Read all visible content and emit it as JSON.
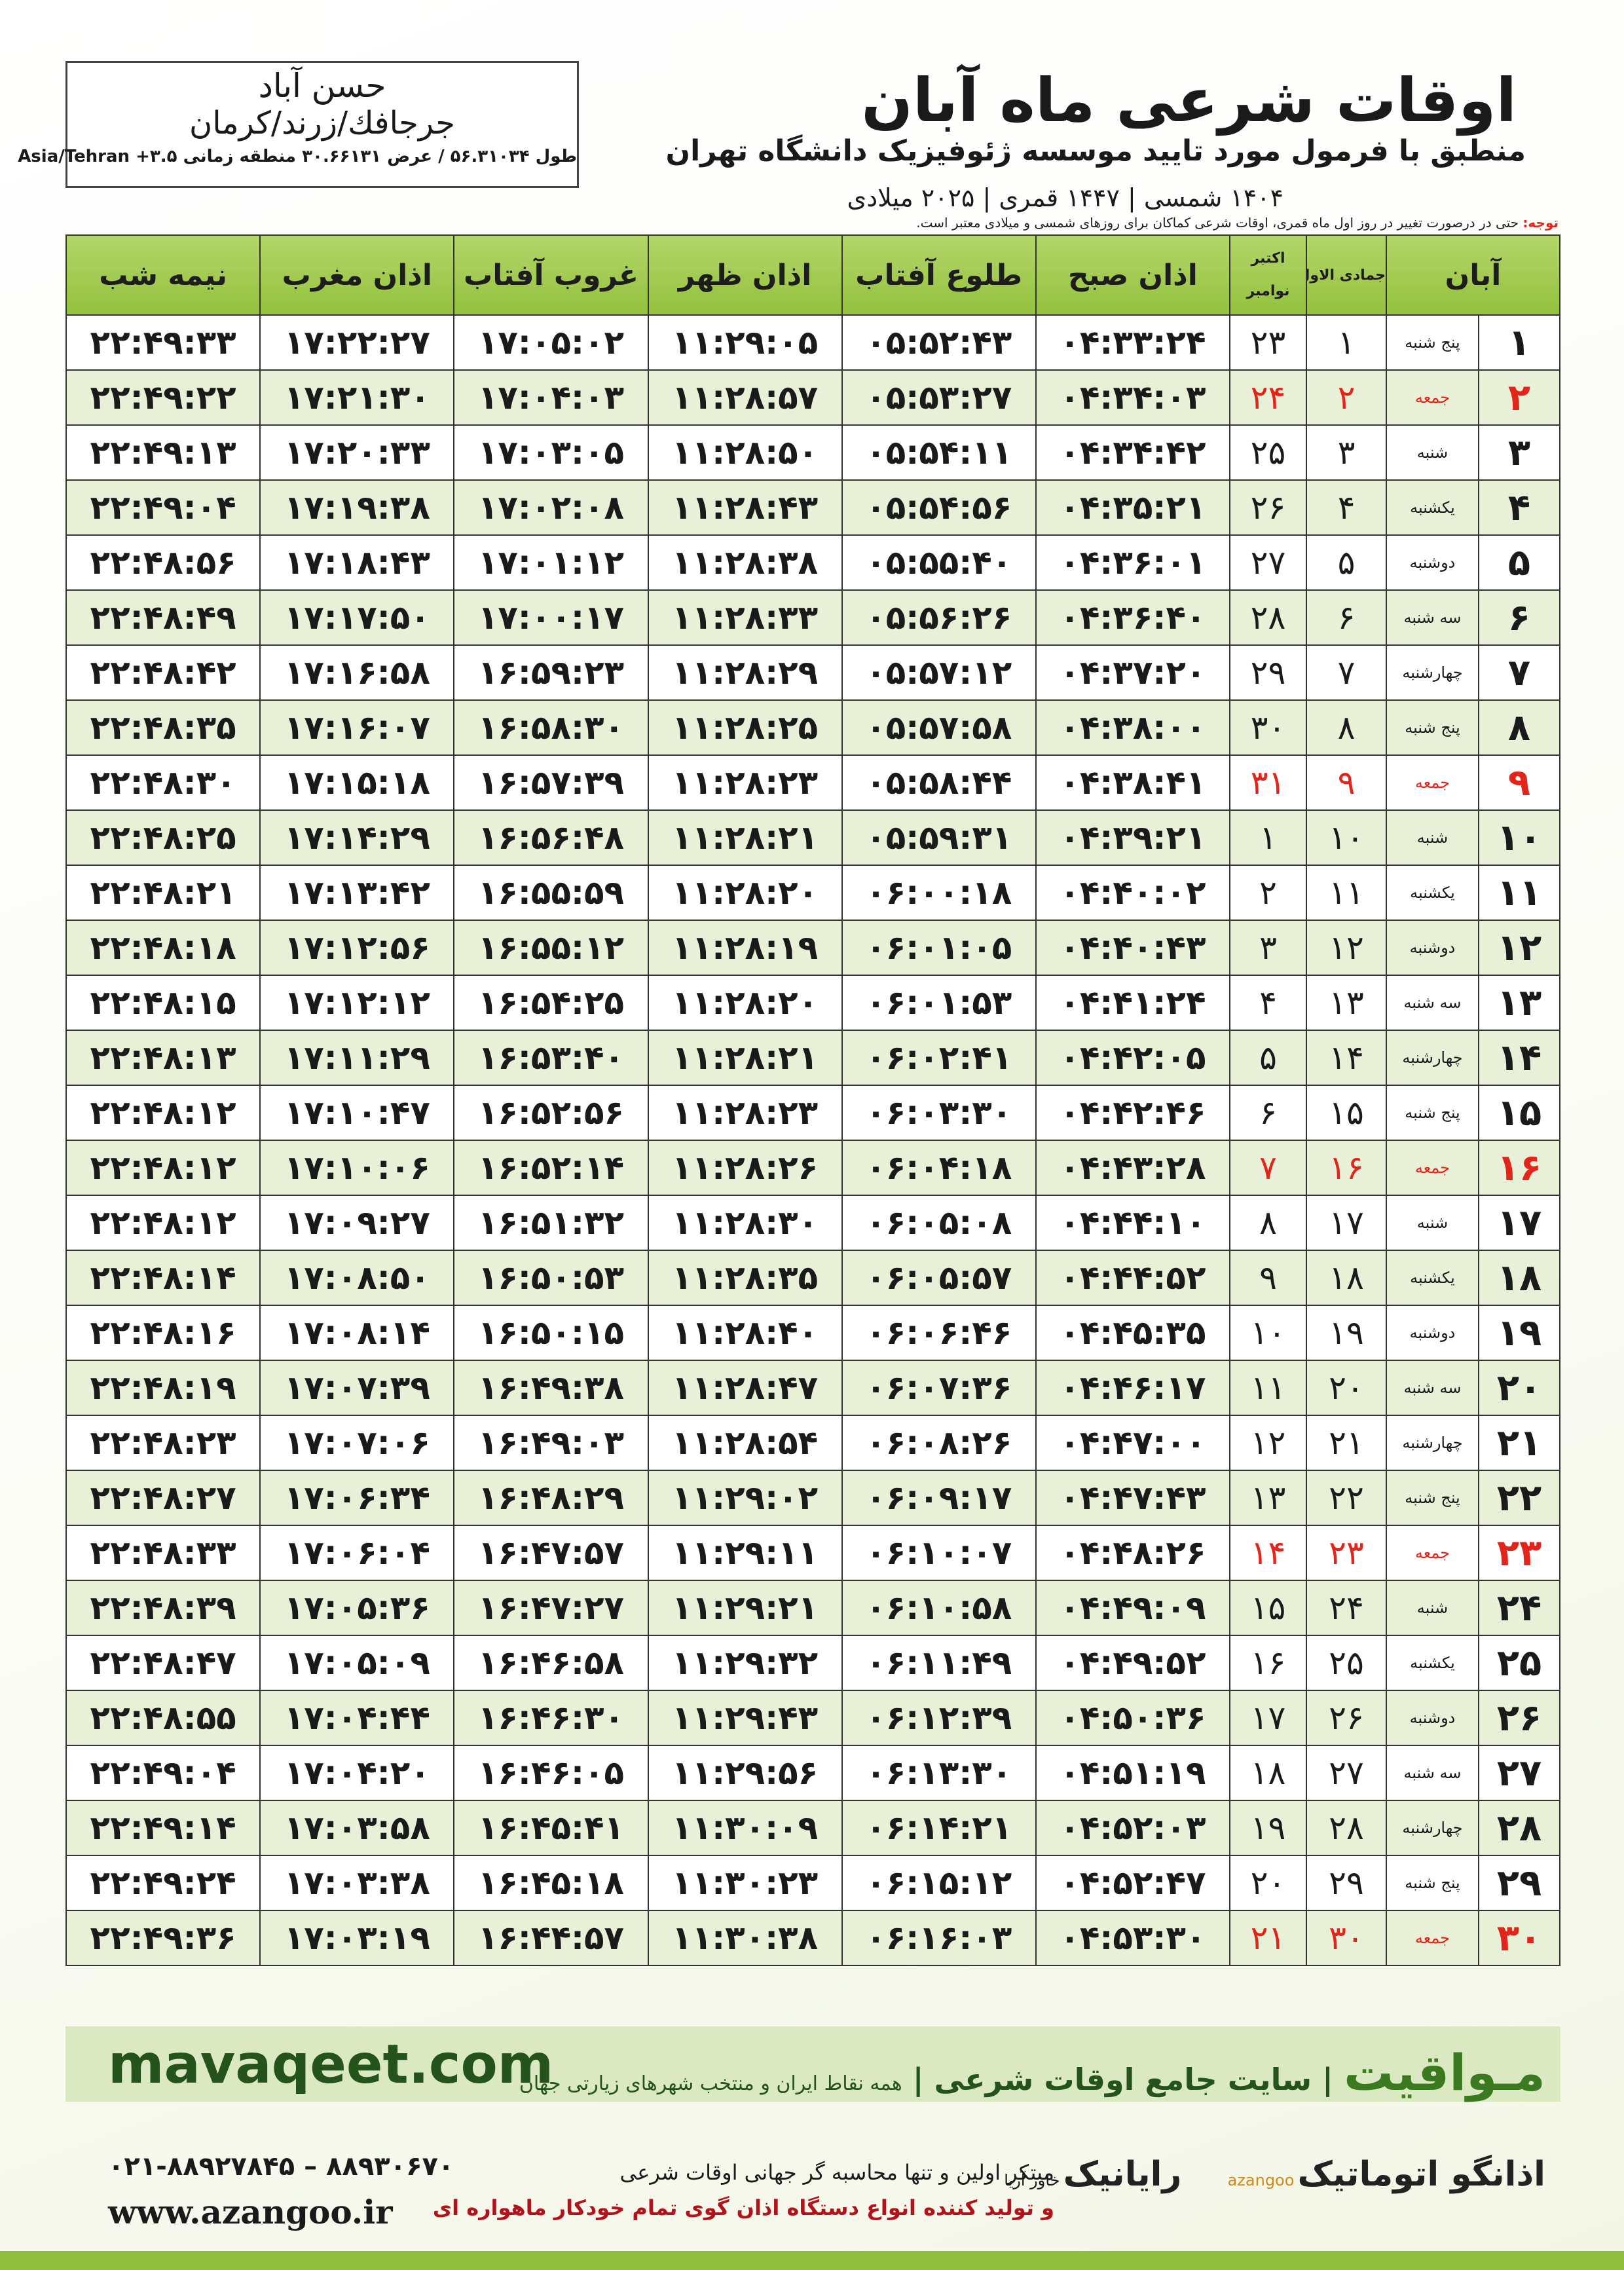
{
  "header": {
    "title": "اوقات شرعی ماه آبان",
    "subtitle": "منطبق با فرمول مورد تایید موسسه ژئوفیزیک دانشگاه تهران",
    "dates": "۱۴۰۴ شمسی | ۱۴۴۷ قمری | ۲۰۲۵ میلادی"
  },
  "location": {
    "city": "حسن آباد",
    "region": "جرجافك/زرند/کرمان",
    "coords": "طول ۵۶.۳۱۰۳۴ / عرض ۳۰.۶۶۱۳۱ منطقه زمانی ۳.۵+ Asia/Tehran"
  },
  "note": {
    "label": "توجه:",
    "text": "حتی در درصورت تغییر در روز اول ماه قمری، اوقات شرعی کماکان برای روزهای شمسی و میلادی معتبر است."
  },
  "table": {
    "columns": {
      "day": "آبان",
      "qamari": "جمادی الاول",
      "miladi": [
        "اکتبر",
        "نوامبر"
      ],
      "times": [
        "اذان صبح",
        "طلوع آفتاب",
        "اذان ظهر",
        "غروب آفتاب",
        "اذان مغرب",
        "نیمه شب"
      ]
    },
    "holiday_rows": [
      1,
      8,
      15,
      22,
      29
    ],
    "holiday_color": "#e3241b",
    "rows": [
      [
        "۱",
        "پنج شنبه",
        "۱",
        "۲۳",
        "۰۴:۳۳:۲۴",
        "۰۵:۵۲:۴۳",
        "۱۱:۲۹:۰۵",
        "۱۷:۰۵:۰۲",
        "۱۷:۲۲:۲۷",
        "۲۲:۴۹:۳۳"
      ],
      [
        "۲",
        "جمعه",
        "۲",
        "۲۴",
        "۰۴:۳۴:۰۳",
        "۰۵:۵۳:۲۷",
        "۱۱:۲۸:۵۷",
        "۱۷:۰۴:۰۳",
        "۱۷:۲۱:۳۰",
        "۲۲:۴۹:۲۲"
      ],
      [
        "۳",
        "شنبه",
        "۳",
        "۲۵",
        "۰۴:۳۴:۴۲",
        "۰۵:۵۴:۱۱",
        "۱۱:۲۸:۵۰",
        "۱۷:۰۳:۰۵",
        "۱۷:۲۰:۳۳",
        "۲۲:۴۹:۱۳"
      ],
      [
        "۴",
        "یکشنبه",
        "۴",
        "۲۶",
        "۰۴:۳۵:۲۱",
        "۰۵:۵۴:۵۶",
        "۱۱:۲۸:۴۳",
        "۱۷:۰۲:۰۸",
        "۱۷:۱۹:۳۸",
        "۲۲:۴۹:۰۴"
      ],
      [
        "۵",
        "دوشنبه",
        "۵",
        "۲۷",
        "۰۴:۳۶:۰۱",
        "۰۵:۵۵:۴۰",
        "۱۱:۲۸:۳۸",
        "۱۷:۰۱:۱۲",
        "۱۷:۱۸:۴۳",
        "۲۲:۴۸:۵۶"
      ],
      [
        "۶",
        "سه شنبه",
        "۶",
        "۲۸",
        "۰۴:۳۶:۴۰",
        "۰۵:۵۶:۲۶",
        "۱۱:۲۸:۳۳",
        "۱۷:۰۰:۱۷",
        "۱۷:۱۷:۵۰",
        "۲۲:۴۸:۴۹"
      ],
      [
        "۷",
        "چهارشنبه",
        "۷",
        "۲۹",
        "۰۴:۳۷:۲۰",
        "۰۵:۵۷:۱۲",
        "۱۱:۲۸:۲۹",
        "۱۶:۵۹:۲۳",
        "۱۷:۱۶:۵۸",
        "۲۲:۴۸:۴۲"
      ],
      [
        "۸",
        "پنج شنبه",
        "۸",
        "۳۰",
        "۰۴:۳۸:۰۰",
        "۰۵:۵۷:۵۸",
        "۱۱:۲۸:۲۵",
        "۱۶:۵۸:۳۰",
        "۱۷:۱۶:۰۷",
        "۲۲:۴۸:۳۵"
      ],
      [
        "۹",
        "جمعه",
        "۹",
        "۳۱",
        "۰۴:۳۸:۴۱",
        "۰۵:۵۸:۴۴",
        "۱۱:۲۸:۲۳",
        "۱۶:۵۷:۳۹",
        "۱۷:۱۵:۱۸",
        "۲۲:۴۸:۳۰"
      ],
      [
        "۱۰",
        "شنبه",
        "۱۰",
        "۱",
        "۰۴:۳۹:۲۱",
        "۰۵:۵۹:۳۱",
        "۱۱:۲۸:۲۱",
        "۱۶:۵۶:۴۸",
        "۱۷:۱۴:۲۹",
        "۲۲:۴۸:۲۵"
      ],
      [
        "۱۱",
        "یکشنبه",
        "۱۱",
        "۲",
        "۰۴:۴۰:۰۲",
        "۰۶:۰۰:۱۸",
        "۱۱:۲۸:۲۰",
        "۱۶:۵۵:۵۹",
        "۱۷:۱۳:۴۲",
        "۲۲:۴۸:۲۱"
      ],
      [
        "۱۲",
        "دوشنبه",
        "۱۲",
        "۳",
        "۰۴:۴۰:۴۳",
        "۰۶:۰۱:۰۵",
        "۱۱:۲۸:۱۹",
        "۱۶:۵۵:۱۲",
        "۱۷:۱۲:۵۶",
        "۲۲:۴۸:۱۸"
      ],
      [
        "۱۳",
        "سه شنبه",
        "۱۳",
        "۴",
        "۰۴:۴۱:۲۴",
        "۰۶:۰۱:۵۳",
        "۱۱:۲۸:۲۰",
        "۱۶:۵۴:۲۵",
        "۱۷:۱۲:۱۲",
        "۲۲:۴۸:۱۵"
      ],
      [
        "۱۴",
        "چهارشنبه",
        "۱۴",
        "۵",
        "۰۴:۴۲:۰۵",
        "۰۶:۰۲:۴۱",
        "۱۱:۲۸:۲۱",
        "۱۶:۵۳:۴۰",
        "۱۷:۱۱:۲۹",
        "۲۲:۴۸:۱۳"
      ],
      [
        "۱۵",
        "پنج شنبه",
        "۱۵",
        "۶",
        "۰۴:۴۲:۴۶",
        "۰۶:۰۳:۳۰",
        "۱۱:۲۸:۲۳",
        "۱۶:۵۲:۵۶",
        "۱۷:۱۰:۴۷",
        "۲۲:۴۸:۱۲"
      ],
      [
        "۱۶",
        "جمعه",
        "۱۶",
        "۷",
        "۰۴:۴۳:۲۸",
        "۰۶:۰۴:۱۸",
        "۱۱:۲۸:۲۶",
        "۱۶:۵۲:۱۴",
        "۱۷:۱۰:۰۶",
        "۲۲:۴۸:۱۲"
      ],
      [
        "۱۷",
        "شنبه",
        "۱۷",
        "۸",
        "۰۴:۴۴:۱۰",
        "۰۶:۰۵:۰۸",
        "۱۱:۲۸:۳۰",
        "۱۶:۵۱:۳۲",
        "۱۷:۰۹:۲۷",
        "۲۲:۴۸:۱۲"
      ],
      [
        "۱۸",
        "یکشنبه",
        "۱۸",
        "۹",
        "۰۴:۴۴:۵۲",
        "۰۶:۰۵:۵۷",
        "۱۱:۲۸:۳۵",
        "۱۶:۵۰:۵۳",
        "۱۷:۰۸:۵۰",
        "۲۲:۴۸:۱۴"
      ],
      [
        "۱۹",
        "دوشنبه",
        "۱۹",
        "۱۰",
        "۰۴:۴۵:۳۵",
        "۰۶:۰۶:۴۶",
        "۱۱:۲۸:۴۰",
        "۱۶:۵۰:۱۵",
        "۱۷:۰۸:۱۴",
        "۲۲:۴۸:۱۶"
      ],
      [
        "۲۰",
        "سه شنبه",
        "۲۰",
        "۱۱",
        "۰۴:۴۶:۱۷",
        "۰۶:۰۷:۳۶",
        "۱۱:۲۸:۴۷",
        "۱۶:۴۹:۳۸",
        "۱۷:۰۷:۳۹",
        "۲۲:۴۸:۱۹"
      ],
      [
        "۲۱",
        "چهارشنبه",
        "۲۱",
        "۱۲",
        "۰۴:۴۷:۰۰",
        "۰۶:۰۸:۲۶",
        "۱۱:۲۸:۵۴",
        "۱۶:۴۹:۰۳",
        "۱۷:۰۷:۰۶",
        "۲۲:۴۸:۲۳"
      ],
      [
        "۲۲",
        "پنج شنبه",
        "۲۲",
        "۱۳",
        "۰۴:۴۷:۴۳",
        "۰۶:۰۹:۱۷",
        "۱۱:۲۹:۰۲",
        "۱۶:۴۸:۲۹",
        "۱۷:۰۶:۳۴",
        "۲۲:۴۸:۲۷"
      ],
      [
        "۲۳",
        "جمعه",
        "۲۳",
        "۱۴",
        "۰۴:۴۸:۲۶",
        "۰۶:۱۰:۰۷",
        "۱۱:۲۹:۱۱",
        "۱۶:۴۷:۵۷",
        "۱۷:۰۶:۰۴",
        "۲۲:۴۸:۳۳"
      ],
      [
        "۲۴",
        "شنبه",
        "۲۴",
        "۱۵",
        "۰۴:۴۹:۰۹",
        "۰۶:۱۰:۵۸",
        "۱۱:۲۹:۲۱",
        "۱۶:۴۷:۲۷",
        "۱۷:۰۵:۳۶",
        "۲۲:۴۸:۳۹"
      ],
      [
        "۲۵",
        "یکشنبه",
        "۲۵",
        "۱۶",
        "۰۴:۴۹:۵۲",
        "۰۶:۱۱:۴۹",
        "۱۱:۲۹:۳۲",
        "۱۶:۴۶:۵۸",
        "۱۷:۰۵:۰۹",
        "۲۲:۴۸:۴۷"
      ],
      [
        "۲۶",
        "دوشنبه",
        "۲۶",
        "۱۷",
        "۰۴:۵۰:۳۶",
        "۰۶:۱۲:۳۹",
        "۱۱:۲۹:۴۳",
        "۱۶:۴۶:۳۰",
        "۱۷:۰۴:۴۴",
        "۲۲:۴۸:۵۵"
      ],
      [
        "۲۷",
        "سه شنبه",
        "۲۷",
        "۱۸",
        "۰۴:۵۱:۱۹",
        "۰۶:۱۳:۳۰",
        "۱۱:۲۹:۵۶",
        "۱۶:۴۶:۰۵",
        "۱۷:۰۴:۲۰",
        "۲۲:۴۹:۰۴"
      ],
      [
        "۲۸",
        "چهارشنبه",
        "۲۸",
        "۱۹",
        "۰۴:۵۲:۰۳",
        "۰۶:۱۴:۲۱",
        "۱۱:۳۰:۰۹",
        "۱۶:۴۵:۴۱",
        "۱۷:۰۳:۵۸",
        "۲۲:۴۹:۱۴"
      ],
      [
        "۲۹",
        "پنج شنبه",
        "۲۹",
        "۲۰",
        "۰۴:۵۲:۴۷",
        "۰۶:۱۵:۱۲",
        "۱۱:۳۰:۲۳",
        "۱۶:۴۵:۱۸",
        "۱۷:۰۳:۳۸",
        "۲۲:۴۹:۲۴"
      ],
      [
        "۳۰",
        "جمعه",
        "۳۰",
        "۲۱",
        "۰۴:۵۳:۳۰",
        "۰۶:۱۶:۰۳",
        "۱۱:۳۰:۳۸",
        "۱۶:۴۴:۵۷",
        "۱۷:۰۳:۱۹",
        "۲۲:۴۹:۳۶"
      ]
    ]
  },
  "footer": {
    "site": "mavaqeet.com",
    "brand": "مـواقیت",
    "slogan": "سایت جامع اوقات شرعی",
    "coverage": "همه نقاط ایران و منتخب شهرهای زیارتی جهان",
    "phone": "۰۲۱-۸۸۹۲۷۸۴۵ – ۸۸۹۳۰۶۷۰",
    "web": "www.azangoo.ir",
    "line1": "مبتکر اولین و تنها محاسبه گر جهانی اوقات شرعی",
    "line2": "و تولید کننده انواع دستگاه اذان گوی تمام خودکار ماهواره ای",
    "logo1": "رایانیک",
    "logo1_sub": "خاور آریا",
    "logo2": "اذانگو اتوماتیک",
    "logo2_sub": "azangoo"
  }
}
